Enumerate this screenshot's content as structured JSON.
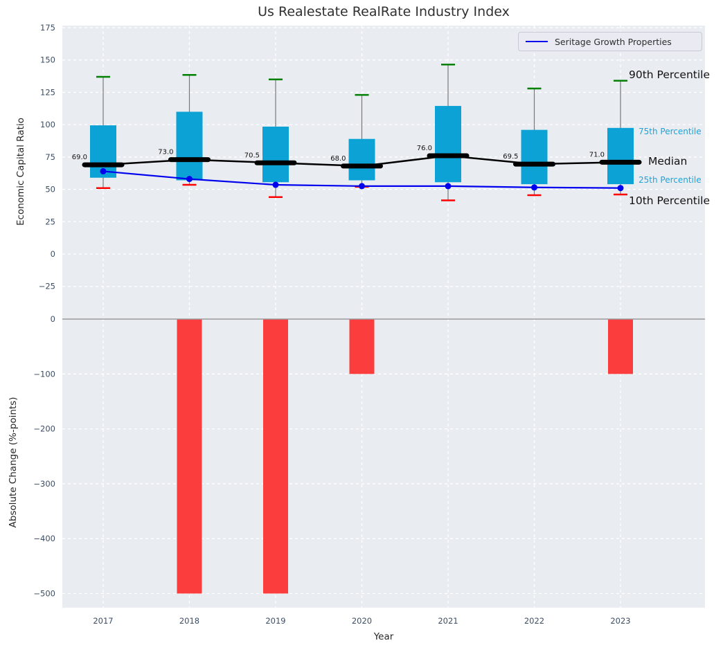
{
  "figure": {
    "title": "Us Realestate RealRate Industry Index",
    "xlabel": "Year",
    "background": "#ffffff",
    "axes_background": "#e9edf1"
  },
  "legend": {
    "label": "Seritage Growth Properties"
  },
  "annotations": {
    "p90": "90th Percentile",
    "p75": "75th Percentile",
    "median": "Median",
    "p25": "25th Percentile",
    "p10": "10th Percentile"
  },
  "colors": {
    "box_fill": "#0da2d6",
    "whisker": "#777777",
    "cap_high": "#008000",
    "cap_low": "#ff0000",
    "median": "#000000",
    "company_line": "#0000ee",
    "bar_fill": "#fb3d3d",
    "zero_line": "#9a9a9a",
    "grid": "#ffffff",
    "annotation_cyan": "#1ba4dc"
  },
  "chart_data": [
    {
      "type": "boxplot+line",
      "title": "Us Realestate RealRate Industry Index",
      "ylabel": "Economic Capital Ratio",
      "categories": [
        "2017",
        "2018",
        "2019",
        "2020",
        "2021",
        "2022",
        "2023"
      ],
      "ylim": [
        -41,
        177
      ],
      "grid": true,
      "legend_position": "upper right",
      "y_ticks": [
        {
          "v": 175,
          "label": "175"
        },
        {
          "v": 150,
          "label": "150"
        },
        {
          "v": 125,
          "label": "125"
        },
        {
          "v": 100,
          "label": "100"
        },
        {
          "v": 75,
          "label": "75"
        },
        {
          "v": 50,
          "label": "50"
        },
        {
          "v": 25,
          "label": "25"
        },
        {
          "v": 0,
          "label": "0"
        },
        {
          "v": -25,
          "label": "−25"
        }
      ],
      "series": [
        {
          "name": "90th Percentile",
          "values": [
            137,
            138.5,
            135,
            123,
            146.5,
            128,
            134
          ]
        },
        {
          "name": "75th Percentile",
          "values": [
            99.5,
            110,
            98.5,
            89,
            114.5,
            96,
            97.5
          ]
        },
        {
          "name": "Median",
          "values": [
            69.0,
            73.0,
            70.5,
            68.0,
            76.0,
            69.5,
            71.0
          ]
        },
        {
          "name": "25th Percentile",
          "values": [
            59,
            57,
            55.5,
            57,
            55.5,
            54,
            54
          ]
        },
        {
          "name": "10th Percentile",
          "values": [
            51,
            53.5,
            44,
            52,
            41.5,
            45.5,
            46
          ]
        },
        {
          "name": "Seritage Growth Properties",
          "values": [
            64,
            58,
            53.5,
            52.5,
            52.5,
            51.5,
            51
          ]
        }
      ],
      "median_labels": [
        "69.0",
        "73.0",
        "70.5",
        "68.0",
        "76.0",
        "69.5",
        "71.0"
      ]
    },
    {
      "type": "bar",
      "ylabel": "Absolute Change (%-points)",
      "xlabel": "Year",
      "categories": [
        "2017",
        "2018",
        "2019",
        "2020",
        "2021",
        "2022",
        "2023"
      ],
      "values": [
        0,
        -500,
        -500,
        -100,
        0,
        0,
        -100
      ],
      "ylim": [
        -525,
        25
      ],
      "grid": true,
      "y_ticks": [
        {
          "v": 0,
          "label": "0"
        },
        {
          "v": -100,
          "label": "−100"
        },
        {
          "v": -200,
          "label": "−200"
        },
        {
          "v": -300,
          "label": "−300"
        },
        {
          "v": -400,
          "label": "−400"
        },
        {
          "v": -500,
          "label": "−500"
        }
      ]
    }
  ]
}
